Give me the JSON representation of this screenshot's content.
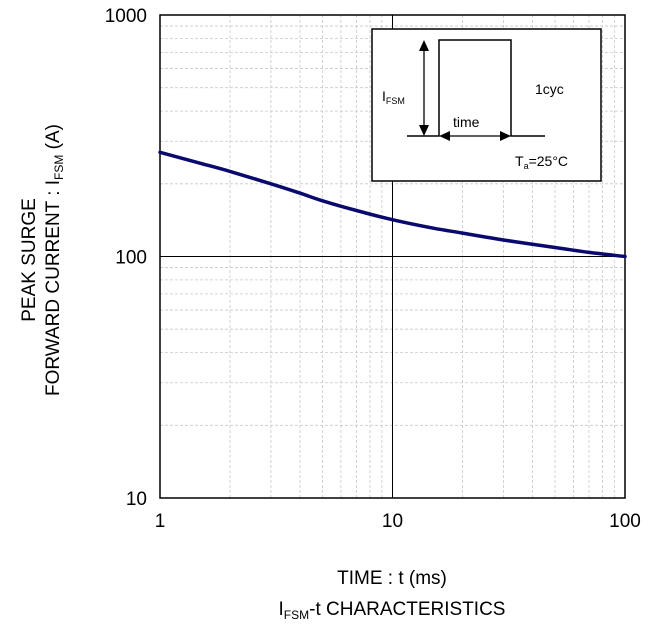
{
  "chart_data": {
    "type": "line",
    "title_main": "-t CHARACTERISTICS",
    "title_prefix": "I",
    "title_sub": "FSM",
    "xlabel": "TIME : t (ms)",
    "ylabel_line1": "PEAK SURGE",
    "ylabel_line2_pre": "FORWARD CURRENT : I",
    "ylabel_line2_sub": "FSM",
    "ylabel_line2_post": " (A)",
    "x_scale": "log",
    "y_scale": "log",
    "xlim": [
      1,
      100
    ],
    "ylim": [
      10,
      1000
    ],
    "x_ticks": [
      {
        "value": 1,
        "label": "1"
      },
      {
        "value": 10,
        "label": "10"
      },
      {
        "value": 100,
        "label": "100"
      }
    ],
    "y_ticks": [
      {
        "value": 10,
        "label": "10"
      },
      {
        "value": 100,
        "label": "100"
      },
      {
        "value": 1000,
        "label": "1000"
      }
    ],
    "grid": "on",
    "series": [
      {
        "color": "#0a0a6e",
        "x": [
          1,
          1.5,
          2,
          3,
          4,
          5,
          7,
          10,
          15,
          20,
          30,
          50,
          70,
          100
        ],
        "y": [
          270,
          243,
          225,
          200,
          183,
          170,
          155,
          142,
          131,
          125,
          117,
          109,
          104,
          100
        ]
      }
    ],
    "inset": {
      "label_pre": "I",
      "label_sub": "FSM",
      "time_label": "time",
      "cycle_label": "1cyc",
      "temp_pre": "T",
      "temp_sub": "a",
      "temp_post": "=25°C"
    }
  }
}
